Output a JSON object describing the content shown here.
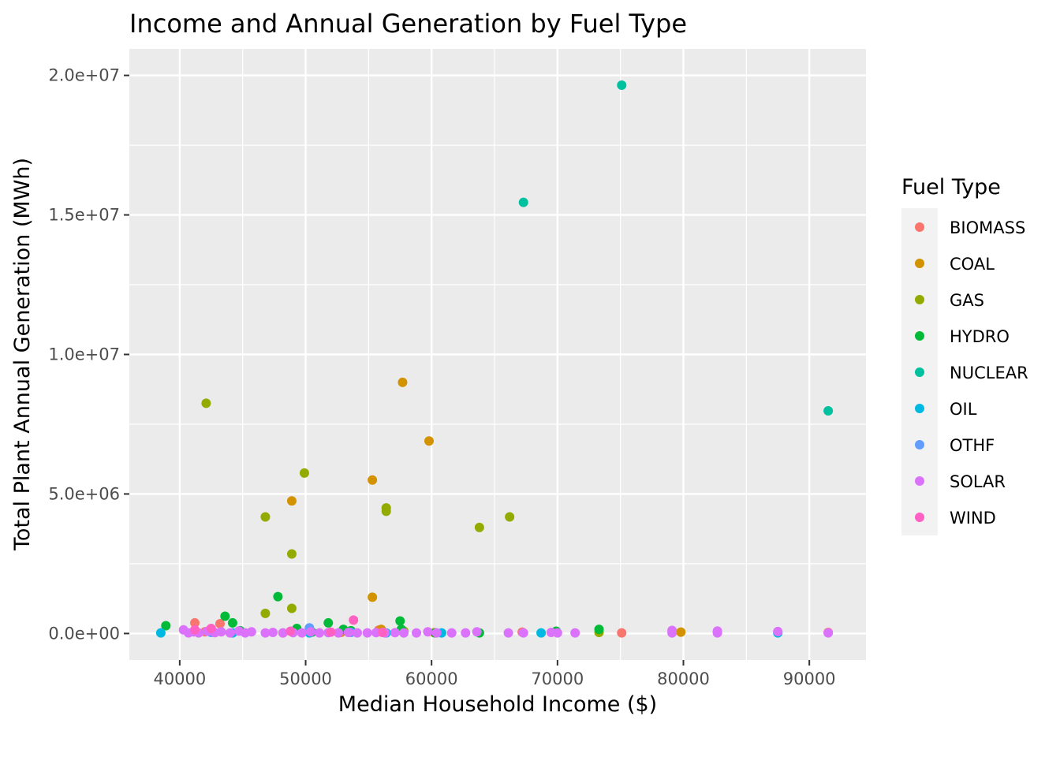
{
  "chart_data": {
    "type": "scatter",
    "title": "Income and Annual Generation by Fuel Type",
    "xlabel": "Median Household Income ($)",
    "ylabel": "Total Plant Annual Generation (MWh)",
    "xlim": [
      36000,
      94500
    ],
    "ylim": [
      -950000,
      20950000
    ],
    "x_ticks": [
      {
        "value": 40000,
        "label": "40000"
      },
      {
        "value": 50000,
        "label": "50000"
      },
      {
        "value": 60000,
        "label": "60000"
      },
      {
        "value": 70000,
        "label": "70000"
      },
      {
        "value": 80000,
        "label": "80000"
      },
      {
        "value": 90000,
        "label": "90000"
      }
    ],
    "y_ticks": [
      {
        "value": 0,
        "label": "0.0e+00"
      },
      {
        "value": 5000000,
        "label": "5.0e+06"
      },
      {
        "value": 10000000,
        "label": "1.0e+07"
      },
      {
        "value": 15000000,
        "label": "1.5e+07"
      },
      {
        "value": 20000000,
        "label": "2.0e+07"
      }
    ],
    "grid": true,
    "panel_background": "#ebebeb",
    "legend": {
      "title": "Fuel Type",
      "position": "right"
    },
    "series": [
      {
        "name": "BIOMASS",
        "color": "#F8766D",
        "points": [
          [
            41200,
            380000
          ],
          [
            43200,
            350000
          ],
          [
            42000,
            60000
          ],
          [
            48200,
            20000
          ],
          [
            52800,
            40000
          ],
          [
            55800,
            120000
          ],
          [
            57800,
            60000
          ],
          [
            67200,
            50000
          ],
          [
            75100,
            20000
          ],
          [
            91500,
            40000
          ]
        ]
      },
      {
        "name": "COAL",
        "color": "#D39200",
        "points": [
          [
            57700,
            9000000
          ],
          [
            59800,
            6900000
          ],
          [
            55300,
            5500000
          ],
          [
            48900,
            4750000
          ],
          [
            55300,
            1300000
          ],
          [
            56000,
            150000
          ],
          [
            52800,
            50000
          ],
          [
            79800,
            50000
          ],
          [
            60200,
            30000
          ]
        ]
      },
      {
        "name": "GAS",
        "color": "#93AA00",
        "points": [
          [
            42100,
            8250000
          ],
          [
            49900,
            5750000
          ],
          [
            46800,
            4180000
          ],
          [
            56400,
            4500000
          ],
          [
            56400,
            4380000
          ],
          [
            63800,
            3800000
          ],
          [
            66200,
            4180000
          ],
          [
            48900,
            2850000
          ],
          [
            48900,
            900000
          ],
          [
            46800,
            720000
          ],
          [
            73300,
            40000
          ],
          [
            57800,
            80000
          ]
        ]
      },
      {
        "name": "HYDRO",
        "color": "#00BA38",
        "points": [
          [
            38900,
            280000
          ],
          [
            43600,
            620000
          ],
          [
            44200,
            380000
          ],
          [
            47800,
            1320000
          ],
          [
            51800,
            380000
          ],
          [
            57500,
            450000
          ],
          [
            49300,
            180000
          ],
          [
            53000,
            150000
          ],
          [
            53600,
            100000
          ],
          [
            50500,
            50000
          ],
          [
            44800,
            100000
          ],
          [
            57600,
            150000
          ],
          [
            60300,
            20000
          ],
          [
            73300,
            150000
          ],
          [
            69900,
            80000
          ],
          [
            63800,
            20000
          ]
        ]
      },
      {
        "name": "NUCLEAR",
        "color": "#00C19F",
        "points": [
          [
            75100,
            19650000
          ],
          [
            67300,
            15450000
          ],
          [
            91500,
            7980000
          ]
        ]
      },
      {
        "name": "OIL",
        "color": "#00B9E3",
        "points": [
          [
            38500,
            20000
          ],
          [
            44200,
            20000
          ],
          [
            50300,
            20000
          ],
          [
            56400,
            20000
          ],
          [
            60800,
            20000
          ],
          [
            68700,
            20000
          ],
          [
            87500,
            20000
          ]
        ]
      },
      {
        "name": "OTHF",
        "color": "#619CFF",
        "points": [
          [
            50300,
            200000
          ],
          [
            42500,
            40000
          ],
          [
            53600,
            40000
          ]
        ]
      },
      {
        "name": "SOLAR",
        "color": "#DB72FB",
        "points": [
          [
            40300,
            130000
          ],
          [
            40700,
            20000
          ],
          [
            41100,
            60000
          ],
          [
            41500,
            20000
          ],
          [
            42200,
            80000
          ],
          [
            42800,
            30000
          ],
          [
            43300,
            60000
          ],
          [
            44000,
            20000
          ],
          [
            44700,
            90000
          ],
          [
            45200,
            20000
          ],
          [
            45700,
            60000
          ],
          [
            46800,
            20000
          ],
          [
            47400,
            40000
          ],
          [
            48200,
            20000
          ],
          [
            49000,
            30000
          ],
          [
            49700,
            20000
          ],
          [
            50400,
            60000
          ],
          [
            51100,
            20000
          ],
          [
            51800,
            30000
          ],
          [
            52600,
            20000
          ],
          [
            53400,
            40000
          ],
          [
            54100,
            20000
          ],
          [
            54900,
            20000
          ],
          [
            55600,
            30000
          ],
          [
            56300,
            20000
          ],
          [
            57100,
            30000
          ],
          [
            57800,
            20000
          ],
          [
            58800,
            20000
          ],
          [
            59700,
            60000
          ],
          [
            60400,
            20000
          ],
          [
            61600,
            20000
          ],
          [
            62700,
            20000
          ],
          [
            63600,
            60000
          ],
          [
            66100,
            20000
          ],
          [
            67300,
            20000
          ],
          [
            69500,
            40000
          ],
          [
            70000,
            20000
          ],
          [
            71400,
            20000
          ],
          [
            79100,
            110000
          ],
          [
            79100,
            20000
          ],
          [
            82700,
            90000
          ],
          [
            82700,
            20000
          ],
          [
            87500,
            70000
          ],
          [
            91500,
            20000
          ]
        ]
      },
      {
        "name": "WIND",
        "color": "#FF61C3",
        "points": [
          [
            53800,
            480000
          ],
          [
            42500,
            180000
          ],
          [
            41200,
            130000
          ],
          [
            48800,
            80000
          ],
          [
            52000,
            50000
          ],
          [
            56100,
            40000
          ]
        ]
      }
    ]
  }
}
